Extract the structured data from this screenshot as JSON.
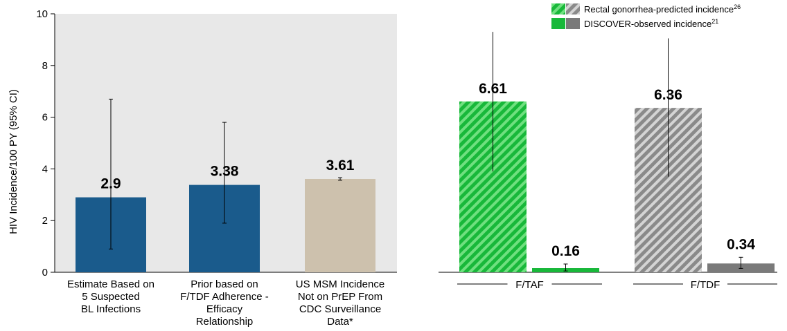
{
  "colors": {
    "plot_bg": "#e8e8e8",
    "blue": "#1a5b8c",
    "beige": "#cdc1ad",
    "green": "#18b83a",
    "green_hatch": "#6fe07f",
    "gray": "#7a7a7a",
    "gray_hatch": "#d4d4d4"
  },
  "chart_data": [
    {
      "type": "bar",
      "ylabel": "HIV Incidence/100 PY (95% CI)",
      "ylim": [
        0,
        10
      ],
      "yticks": [
        "0",
        "2",
        "4",
        "6",
        "8",
        "10"
      ],
      "grid": false,
      "categories": [
        "Estimate Based on 5 Suspected BL Infections",
        "Prior based on F/TDF Adherence - Efficacy Relationship",
        "US MSM Incidence Not on PrEP From CDC Surveillance Data*"
      ],
      "category_lines": [
        [
          "Estimate Based on",
          "5 Suspected",
          "BL Infections"
        ],
        [
          "Prior based on",
          "F/TDF Adherence -",
          "Efficacy",
          "Relationship"
        ],
        [
          "US MSM Incidence",
          "Not on PrEP From",
          "CDC Surveillance",
          "Data*"
        ]
      ],
      "values": [
        2.9,
        3.38,
        3.61
      ],
      "value_labels": [
        "2.9",
        "3.38",
        "3.61"
      ],
      "ci_low": [
        0.9,
        1.9,
        3.56
      ],
      "ci_high": [
        6.7,
        5.8,
        3.66
      ]
    },
    {
      "type": "bar",
      "ylim": [
        0,
        10
      ],
      "groups": [
        "F/TAF",
        "F/TDF"
      ],
      "legend": {
        "position": "top-right",
        "items": [
          {
            "text": "Rectal gonorrhea-predicted incidence",
            "sup": "26"
          },
          {
            "text": "DISCOVER-observed incidence",
            "sup": "21"
          }
        ]
      },
      "series": [
        {
          "name": "Rectal gonorrhea-predicted incidence",
          "values": [
            6.61,
            6.36
          ],
          "value_labels": [
            "6.61",
            "6.36"
          ],
          "ci_low": [
            3.9,
            3.7
          ],
          "ci_high": [
            9.3,
            9.05
          ]
        },
        {
          "name": "DISCOVER-observed incidence",
          "values": [
            0.16,
            0.34
          ],
          "value_labels": [
            "0.16",
            "0.34"
          ],
          "ci_low": [
            0.05,
            0.15
          ],
          "ci_high": [
            0.32,
            0.58
          ]
        }
      ]
    }
  ]
}
